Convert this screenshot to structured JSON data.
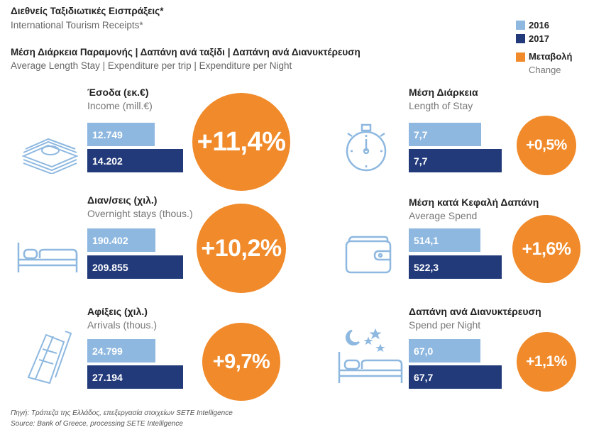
{
  "header": {
    "title_gr": "Διεθνείς Ταξιδιωτικές Εισπράξεις*",
    "title_en": "International Tourism Receipts*",
    "subtitle_gr": "Μέση Διάρκεια Παραμονής | Δαπάνη ανά ταξίδι | Δαπάνη ανά Διανυκτέρευση",
    "subtitle_en": "Average Length Stay | Expenditure per trip | Expenditure per Night"
  },
  "legend": {
    "y2016": "2016",
    "y2017": "2017",
    "change_gr": "Μεταβολή",
    "change_en": "Change"
  },
  "colors": {
    "y2016": "#8eb8e0",
    "y2017": "#223a7a",
    "change": "#f08a2a"
  },
  "footer": {
    "source_gr": "Πηγή: Τράπεζα της Ελλάδος, επεξεργασία στοιχείων SETE Intelligence",
    "source_en": "Source: Bank of Greece, processing SETE Intelligence"
  },
  "chart_data": [
    {
      "type": "bar",
      "title": "Έσοδα (εκ.€)",
      "subtitle": "Income (mill.€)",
      "categories": [
        "2016",
        "2017"
      ],
      "values": [
        12749,
        14202
      ],
      "labels": [
        "12.749",
        "14.202"
      ],
      "change": "+11,4%",
      "icon": "money-icon"
    },
    {
      "type": "bar",
      "title": "Διαν/σεις (χιλ.)",
      "subtitle": "Overnight stays (thous.)",
      "categories": [
        "2016",
        "2017"
      ],
      "values": [
        190402,
        209855
      ],
      "labels": [
        "190.402",
        "209.855"
      ],
      "change": "+10,2%",
      "icon": "bed-icon"
    },
    {
      "type": "bar",
      "title": "Αφίξεις (χιλ.)",
      "subtitle": "Arrivals (thous.)",
      "categories": [
        "2016",
        "2017"
      ],
      "values": [
        24799,
        27194
      ],
      "labels": [
        "24.799",
        "27.194"
      ],
      "change": "+9,7%",
      "icon": "ticket-icon"
    },
    {
      "type": "bar",
      "title": "Μέση Διάρκεια",
      "subtitle": "Length of Stay",
      "categories": [
        "2016",
        "2017"
      ],
      "values": [
        7.7,
        7.7
      ],
      "labels": [
        "7,7",
        "7,7"
      ],
      "change": "+0,5%",
      "icon": "stopwatch-icon"
    },
    {
      "type": "bar",
      "title": "Μέση κατά Κεφαλή Δαπάνη",
      "subtitle": "Average Spend",
      "categories": [
        "2016",
        "2017"
      ],
      "values": [
        514.1,
        522.3
      ],
      "labels": [
        "514,1",
        "522,3"
      ],
      "change": "+1,6%",
      "icon": "wallet-icon"
    },
    {
      "type": "bar",
      "title": "Δαπάνη ανά Διανυκτέρευση",
      "subtitle": "Spend per Night",
      "categories": [
        "2016",
        "2017"
      ],
      "values": [
        67.0,
        67.7
      ],
      "labels": [
        "67,0",
        "67,7"
      ],
      "change": "+1,1%",
      "icon": "night-bed-icon"
    }
  ]
}
